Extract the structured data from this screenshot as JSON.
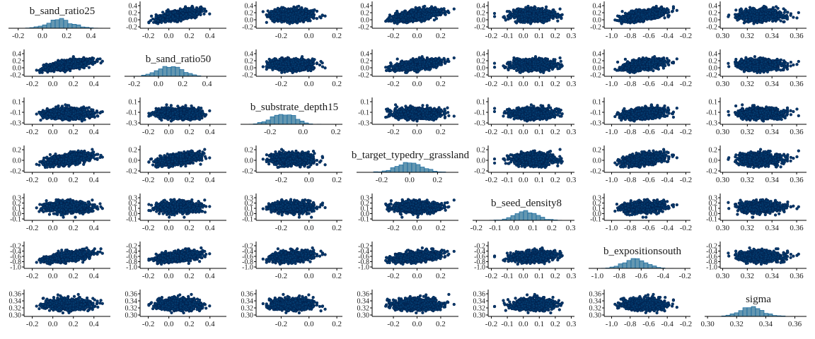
{
  "chart_data": {
    "type": "scatter",
    "layout": "pairs-matrix",
    "diagonal": "histogram",
    "off_diagonal": "scatter",
    "grid": false,
    "point_color": "#011f4b",
    "point_fill": "#03396c",
    "hist_fill": "#6497b1",
    "hist_stroke": "#005b96",
    "axis_color": "#000000",
    "parameters": [
      {
        "name": "b_sand_ratio25",
        "ticks": [
          "-0.2",
          "0.0",
          "0.2",
          "0.4"
        ],
        "ticks_compact": [
          "0.4",
          "0.2",
          "0.0",
          "-0.2"
        ],
        "axis_range": [
          -0.28,
          0.56
        ],
        "mean": 0.15,
        "sd": 0.1
      },
      {
        "name": "b_sand_ratio50",
        "ticks": [
          "-0.2",
          "0.0",
          "0.2",
          "0.4"
        ],
        "ticks_compact": [
          "0.4",
          "0.2",
          "0.0",
          "-0.2"
        ],
        "axis_range": [
          -0.28,
          0.56
        ],
        "mean": 0.1,
        "sd": 0.1
      },
      {
        "name": "b_substrate_depth15",
        "ticks": [
          "-0.2",
          "0.0",
          "0.2"
        ],
        "ticks_compact": [
          "0.1",
          "-0.1",
          "-0.3"
        ],
        "axis_range": [
          -0.38,
          0.24
        ],
        "mean": -0.12,
        "sd": 0.07
      },
      {
        "name": "b_target_typedry_grassland",
        "ticks": [
          "-0.2",
          "0.0",
          "0.2"
        ],
        "ticks_compact": [
          "0.2",
          "0.0",
          "-0.2"
        ],
        "axis_range": [
          -0.38,
          0.35
        ],
        "mean": 0.0,
        "sd": 0.09
      },
      {
        "name": "b_seed_density8",
        "ticks": [
          "-0.2",
          "-0.1",
          "0.0",
          "0.1",
          "0.2",
          "0.3"
        ],
        "ticks_compact": [
          "0.3",
          "0.2",
          "0.1",
          "0.0",
          "-0.1"
        ],
        "axis_range": [
          -0.22,
          0.32
        ],
        "mean": 0.06,
        "sd": 0.06
      },
      {
        "name": "b_expositionsouth",
        "ticks": [
          "-1.0",
          "-0.8",
          "-0.6",
          "-0.4",
          "-0.2"
        ],
        "ticks_compact": [
          "-0.2",
          "-0.4",
          "-0.6",
          "-0.8",
          "-1.0"
        ],
        "axis_range": [
          -1.08,
          -0.15
        ],
        "mean": -0.65,
        "sd": 0.1
      },
      {
        "name": "sigma",
        "ticks": [
          "0.30",
          "0.32",
          "0.34",
          "0.36"
        ],
        "ticks_compact": [
          "0.36",
          "0.34",
          "0.32",
          "0.30"
        ],
        "axis_range": [
          0.298,
          0.368
        ],
        "mean": 0.33,
        "sd": 0.008
      }
    ],
    "correlations": [
      [
        1,
        0.6,
        0,
        0.5,
        0,
        0.55,
        0
      ],
      [
        0.6,
        1,
        0,
        0.5,
        0,
        0.5,
        0
      ],
      [
        0,
        0,
        1,
        0,
        0,
        0.3,
        0
      ],
      [
        0.5,
        0.5,
        0,
        1,
        0,
        0.45,
        0
      ],
      [
        0,
        0,
        0,
        0,
        1,
        0.2,
        0
      ],
      [
        0.55,
        0.5,
        0.3,
        0.45,
        0.2,
        1,
        0
      ],
      [
        0,
        0,
        0,
        0,
        0,
        0,
        1
      ]
    ],
    "sample_count": 1200
  }
}
